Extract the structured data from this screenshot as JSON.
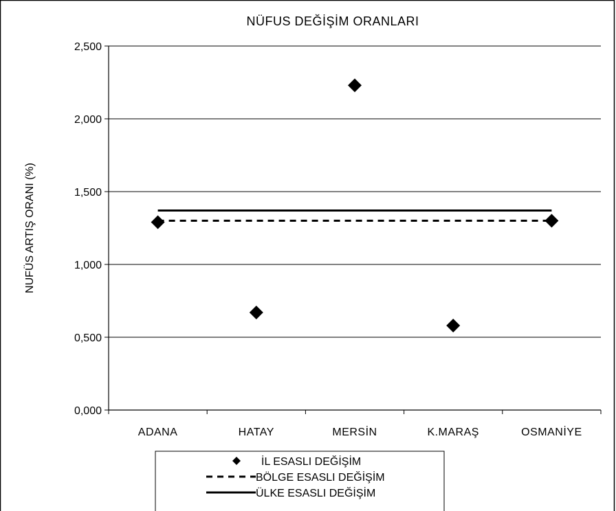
{
  "chart_data": {
    "type": "scatter",
    "title": "NÜFUS DEĞİŞİM ORANLARI",
    "xlabel": "",
    "ylabel": "NUFÜS ARTIŞ ORANI (%)",
    "categories": [
      "ADANA",
      "HATAY",
      "MERSİN",
      "K.MARAŞ",
      "OSMANİYE"
    ],
    "ylim": [
      0,
      2.5
    ],
    "yticks": [
      0,
      0.5,
      1.0,
      1.5,
      2.0,
      2.5
    ],
    "ytick_labels": [
      "0,000",
      "0,500",
      "1,000",
      "1,500",
      "2,000",
      "2,500"
    ],
    "grid": true,
    "legend_position": "bottom",
    "series": [
      {
        "name": "İL ESASLI DEĞİŞİM",
        "style": "diamond-markers",
        "values": [
          1.29,
          0.67,
          2.23,
          0.58,
          1.3
        ]
      },
      {
        "name": "BÖLGE ESASLI DEĞİŞİM",
        "style": "dashed-line",
        "values": [
          1.3,
          1.3,
          1.3,
          1.3,
          1.3
        ]
      },
      {
        "name": "ÜLKE ESASLI DEĞİŞİM",
        "style": "solid-line",
        "values": [
          1.37,
          1.37,
          1.37,
          1.37,
          1.37
        ]
      }
    ],
    "colors": {
      "marker": "#000000",
      "line": "#000000",
      "grid": "#000000"
    }
  }
}
